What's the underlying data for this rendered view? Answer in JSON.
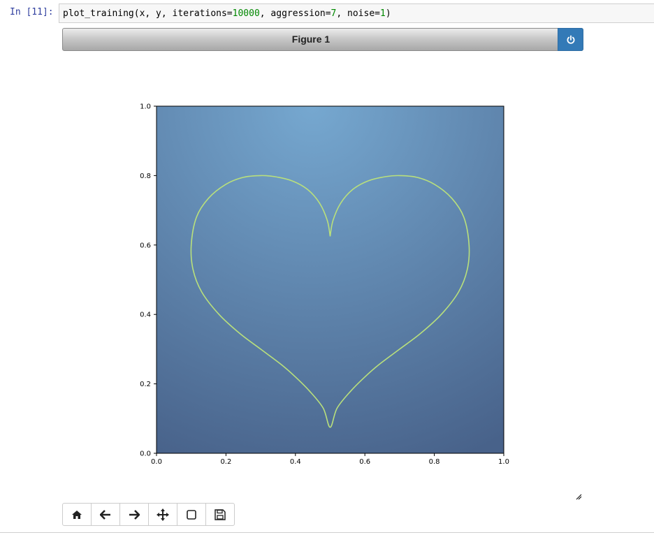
{
  "cell": {
    "prompt": "In [11]:",
    "code_parts": [
      "plot_training(x, y, iterations=",
      "10000",
      ", aggression=",
      "7",
      ", noise=",
      "1",
      ")"
    ]
  },
  "figure": {
    "title": "Figure 1",
    "power_icon": "power-icon"
  },
  "chart_data": {
    "type": "line",
    "title": "",
    "xlabel": "",
    "ylabel": "",
    "xlim": [
      0.0,
      1.0
    ],
    "ylim": [
      0.0,
      1.0
    ],
    "xticks": [
      "0.0",
      "0.2",
      "0.4",
      "0.6",
      "0.8",
      "1.0"
    ],
    "yticks": [
      "0.0",
      "0.2",
      "0.4",
      "0.6",
      "0.8",
      "1.0"
    ],
    "grid": false,
    "background": {
      "top": "#76a8d0",
      "bottom": "#48628a"
    },
    "series": [
      {
        "color": "#b9e07c",
        "x": [
          0.5,
          0.508,
          0.53,
          0.565,
          0.61,
          0.66,
          0.7,
          0.75,
          0.8,
          0.85,
          0.885,
          0.9,
          0.895,
          0.87,
          0.82,
          0.76,
          0.7,
          0.64,
          0.6,
          0.56,
          0.52,
          0.5,
          0.48,
          0.44,
          0.4,
          0.36,
          0.3,
          0.24,
          0.18,
          0.13,
          0.105,
          0.1,
          0.115,
          0.15,
          0.2,
          0.25,
          0.3,
          0.34,
          0.39,
          0.435,
          0.47,
          0.492,
          0.5
        ],
        "y": [
          0.625,
          0.67,
          0.72,
          0.76,
          0.785,
          0.797,
          0.8,
          0.795,
          0.775,
          0.735,
          0.68,
          0.6,
          0.53,
          0.465,
          0.4,
          0.345,
          0.3,
          0.255,
          0.22,
          0.18,
          0.13,
          0.075,
          0.13,
          0.18,
          0.22,
          0.255,
          0.3,
          0.345,
          0.4,
          0.465,
          0.53,
          0.6,
          0.68,
          0.735,
          0.775,
          0.795,
          0.8,
          0.797,
          0.785,
          0.76,
          0.72,
          0.67,
          0.625
        ]
      }
    ]
  },
  "toolbar": {
    "buttons": [
      {
        "name": "home-button",
        "icon": "home-icon"
      },
      {
        "name": "back-button",
        "icon": "arrow-left-icon"
      },
      {
        "name": "forward-button",
        "icon": "arrow-right-icon"
      },
      {
        "name": "pan-button",
        "icon": "move-icon"
      },
      {
        "name": "zoom-button",
        "icon": "square-icon"
      },
      {
        "name": "save-button",
        "icon": "floppy-disk-icon"
      }
    ]
  }
}
